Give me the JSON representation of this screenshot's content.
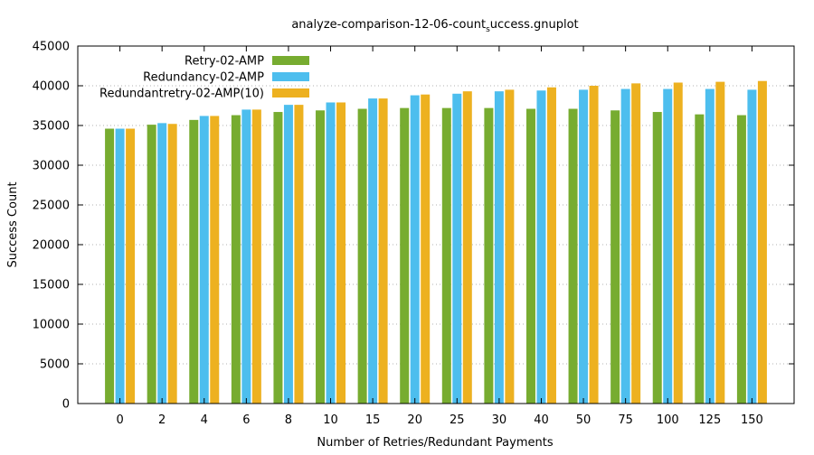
{
  "chart_data": {
    "type": "bar",
    "title": {
      "prefix": "analyze-comparison-12-06-count",
      "subscript": "s",
      "suffix": "uccess.gnuplot"
    },
    "xlabel": "Number of Retries/Redundant Payments",
    "ylabel": "Success Count",
    "ylim": [
      0,
      45000
    ],
    "yticks": [
      0,
      5000,
      10000,
      15000,
      20000,
      25000,
      30000,
      35000,
      40000,
      45000
    ],
    "grid": true,
    "legend_position": "top-left",
    "categories": [
      "0",
      "2",
      "4",
      "6",
      "8",
      "10",
      "15",
      "20",
      "25",
      "30",
      "40",
      "50",
      "75",
      "100",
      "125",
      "150"
    ],
    "series": [
      {
        "name": "Retry-02-AMP",
        "color": "#77ac30",
        "values": [
          34600,
          35100,
          35700,
          36300,
          36700,
          36900,
          37100,
          37200,
          37200,
          37200,
          37100,
          37100,
          36900,
          36700,
          36400,
          36300
        ]
      },
      {
        "name": "Redundancy-02-AMP",
        "color": "#4dbeee",
        "values": [
          34600,
          35300,
          36200,
          37000,
          37600,
          37900,
          38400,
          38800,
          39000,
          39300,
          39400,
          39500,
          39600,
          39600,
          39600,
          39500
        ]
      },
      {
        "name": "Redundantretry-02-AMP(10)",
        "color": "#edb120",
        "values": [
          34600,
          35200,
          36200,
          37000,
          37600,
          37900,
          38400,
          38900,
          39300,
          39500,
          39800,
          40000,
          40300,
          40400,
          40500,
          40600
        ]
      }
    ]
  }
}
